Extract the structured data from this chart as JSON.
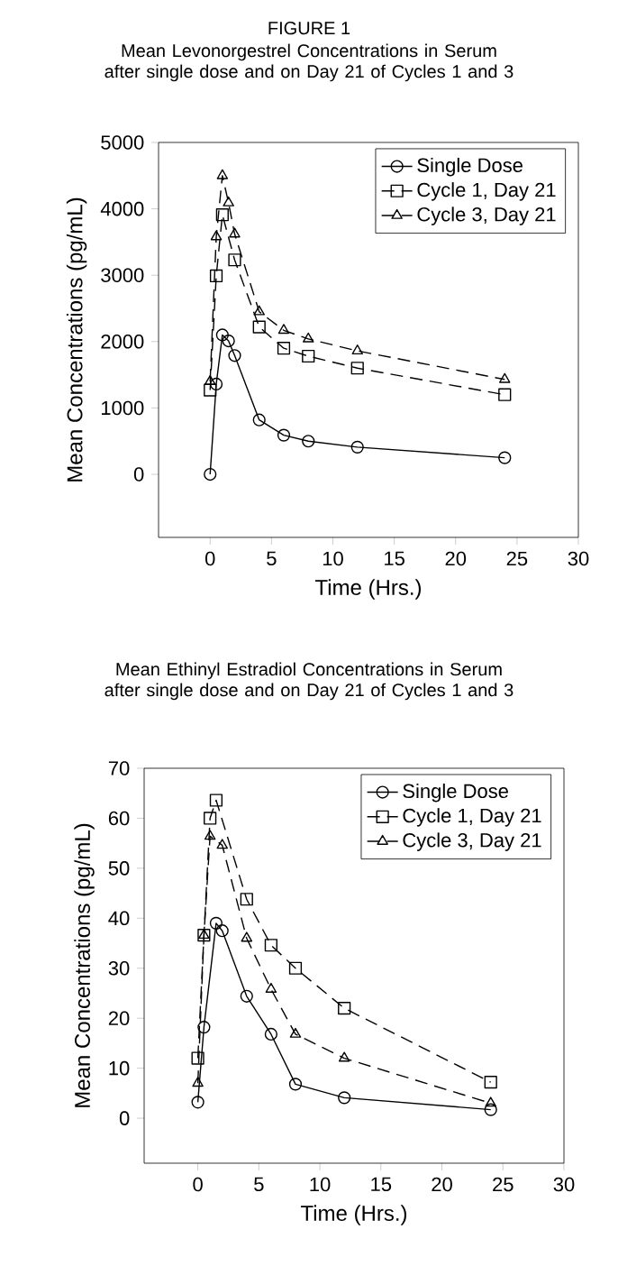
{
  "chart_data": [
    {
      "type": "line",
      "title": "FIGURE 1",
      "subtitle": "Mean Levonorgestrel Concentrations in Serum after single dose and on Day 21 of Cycles 1 and 3",
      "xlabel": "Time (Hrs.)",
      "ylabel": "Mean Concentrations (pg/mL)",
      "xlim": [
        -4.2,
        30
      ],
      "ylim": [
        -950,
        5000
      ],
      "xticks": [
        0,
        5,
        10,
        15,
        20,
        25,
        30
      ],
      "yticks": [
        0,
        1000,
        2000,
        3000,
        4000,
        5000
      ],
      "grid": false,
      "legend": "top right",
      "series": [
        {
          "name": "Single Dose",
          "color": "#000000",
          "marker": "circle",
          "line_style": "solid",
          "x": [
            0,
            0.5,
            1,
            1.5,
            2,
            4,
            6,
            8,
            12,
            24
          ],
          "values": [
            0,
            1360,
            2100,
            2010,
            1790,
            820,
            590,
            500,
            410,
            250
          ]
        },
        {
          "name": "Cycle 1, Day 21",
          "color": "#000000",
          "marker": "square",
          "line_style": "dashed",
          "x": [
            0,
            0.5,
            1,
            2,
            4,
            6,
            8,
            12,
            24
          ],
          "values": [
            1270,
            2990,
            3910,
            3230,
            2220,
            1900,
            1780,
            1600,
            1200
          ]
        },
        {
          "name": "Cycle 3, Day 21",
          "color": "#000000",
          "marker": "triangle",
          "line_style": "dashed",
          "x": [
            0,
            0.5,
            1,
            1.5,
            2,
            4,
            6,
            8,
            12,
            24
          ],
          "values": [
            1400,
            3580,
            4500,
            4090,
            3620,
            2450,
            2170,
            2040,
            1860,
            1430
          ]
        }
      ]
    },
    {
      "type": "line",
      "title": "Mean Ethinyl Estradiol Concentrations in Serum after single dose and on Day 21 of Cycles 1 and 3",
      "xlabel": "Time (Hrs.)",
      "ylabel": "Mean Concentrations (pg/mL)",
      "xlim": [
        -4.4,
        30
      ],
      "ylim": [
        -9,
        70
      ],
      "xticks": [
        0,
        5,
        10,
        15,
        20,
        25,
        30
      ],
      "yticks": [
        0,
        10,
        20,
        30,
        40,
        50,
        60,
        70
      ],
      "grid": false,
      "legend": "top right",
      "series": [
        {
          "name": "Single Dose",
          "color": "#000000",
          "marker": "circle",
          "line_style": "solid",
          "x": [
            0,
            0.5,
            1.5,
            2,
            4,
            6,
            8,
            12,
            24
          ],
          "values": [
            3.2,
            18.2,
            39,
            37.5,
            24.4,
            16.8,
            6.8,
            4.1,
            1.7
          ]
        },
        {
          "name": "Cycle 1, Day 21",
          "color": "#000000",
          "marker": "square",
          "line_style": "dashed",
          "x": [
            0,
            0.5,
            1,
            1.5,
            4,
            6,
            8,
            12,
            24
          ],
          "values": [
            12,
            36.6,
            60,
            63.6,
            43.8,
            34.6,
            30,
            22,
            7.2
          ]
        },
        {
          "name": "Cycle 3, Day 21",
          "color": "#000000",
          "marker": "triangle",
          "line_style": "dashed",
          "x": [
            0,
            0.5,
            1,
            2,
            4,
            6,
            8,
            12,
            24
          ],
          "values": [
            7,
            36.6,
            56.4,
            54.6,
            36,
            25.8,
            16.8,
            12,
            3
          ]
        }
      ]
    }
  ]
}
